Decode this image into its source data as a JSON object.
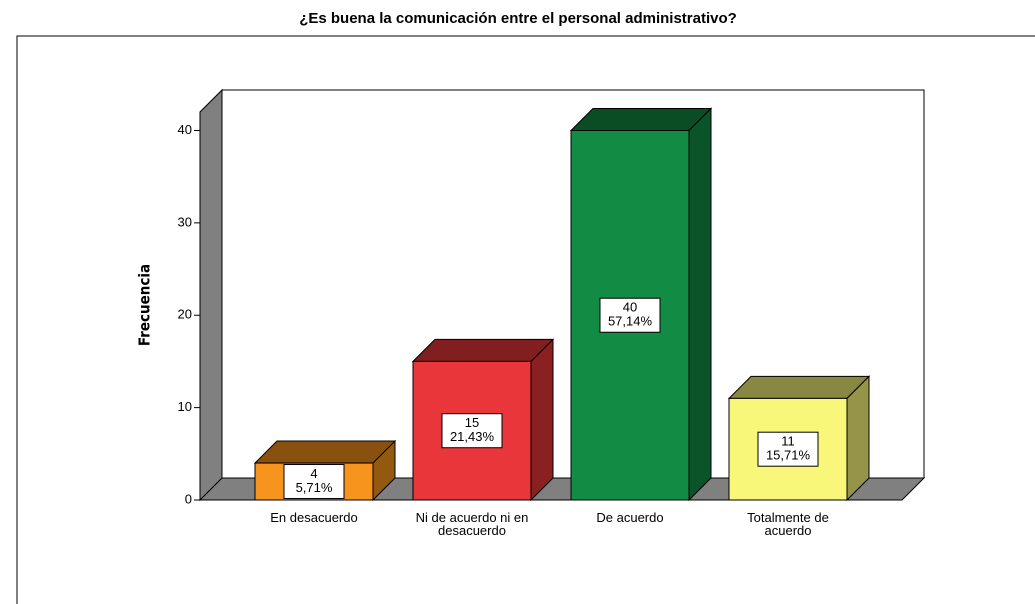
{
  "chart_data": {
    "type": "bar3d",
    "title": "¿Es buena la comunicación entre el personal administrativo?",
    "y_label": "Frecuencia",
    "categories": [
      "En desacuerdo",
      "Ni de acuerdo ni en desacuerdo",
      "De acuerdo",
      "Totalmente de acuerdo"
    ],
    "values": [
      4,
      15,
      40,
      11
    ],
    "percentages": [
      5.71,
      21.43,
      57.14,
      15.71
    ],
    "percentage_labels": [
      "5,71%",
      "21,43%",
      "57,14%",
      "15,71%"
    ],
    "colors": [
      "#f7941d",
      "#e8363b",
      "#128c44",
      "#f9f77a"
    ],
    "ylim": [
      0,
      42
    ],
    "yticks": [
      0,
      10,
      20,
      30,
      40
    ]
  }
}
